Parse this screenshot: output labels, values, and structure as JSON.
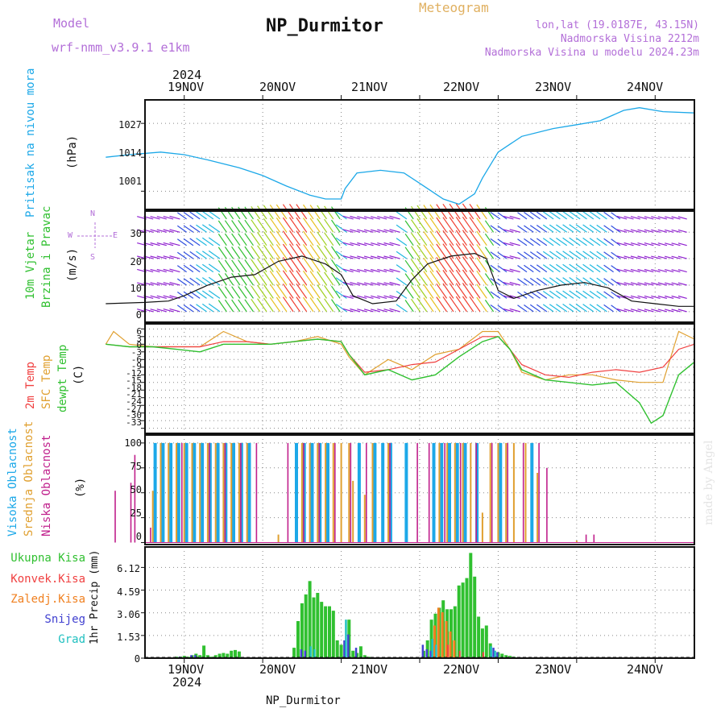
{
  "header": {
    "title": "NP_Durmitor",
    "meteogram_label": "Meteogram",
    "model_label": "Model",
    "model_name": "wrf-nmm_v3.9.1 e1km",
    "lonlat": "lon,lat (19.0187E, 43.15N)",
    "elevation": "Nadmorska Visina 2212m",
    "model_elevation": "Nadmorska Visina u modelu 2024.23m"
  },
  "footer": {
    "station": "NP_Durmitor",
    "credit": "made by Angel"
  },
  "dates": {
    "year": "2024",
    "labels": [
      "19NOV",
      "20NOV",
      "21NOV",
      "22NOV",
      "23NOV",
      "24NOV"
    ]
  },
  "colors": {
    "pressure": "#1ca8e8",
    "temp2m": "#f04040",
    "sfc": "#e0a030",
    "dewpt": "#30c030",
    "high_cloud": "#1ca8e8",
    "mid_cloud": "#e0a030",
    "low_cloud": "#c0208c",
    "total_precip": "#30c030",
    "conv": "#f04040",
    "frozen": "#f08020",
    "snow": "#4040d0",
    "graupel": "#20c0c0",
    "wind_axis": "#b36fd8"
  },
  "chart_data": [
    {
      "type": "line",
      "name_label": "Pritisak na nivou mora",
      "ylabel": "(hPa)",
      "yticks": [
        "1027",
        "1014",
        "1001"
      ],
      "ytick_values": [
        1027,
        1014,
        1001
      ],
      "ylim": [
        994,
        1036
      ],
      "grid": true,
      "series": [
        {
          "x": [
            0,
            0.3,
            0.7,
            1.0,
            1.3,
            1.7,
            2.0,
            2.3,
            2.6,
            2.8,
            3.0,
            3.05,
            3.2,
            3.5,
            3.8,
            4.0,
            4.2,
            4.3,
            4.5,
            4.7,
            4.8,
            5.0,
            5.3,
            5.7,
            6.0,
            6.3,
            6.6,
            6.8,
            7.1,
            7.5
          ],
          "y": [
            1014,
            1015,
            1016,
            1015,
            1013,
            1010,
            1007,
            1003,
            999.5,
            998,
            998,
            1002,
            1008,
            1009,
            1008,
            1004,
            1000,
            998,
            996,
            1000,
            1006,
            1016,
            1022,
            1025,
            1026.5,
            1028,
            1032,
            1033,
            1031.5,
            1031
          ]
        }
      ]
    },
    {
      "type": "line",
      "name_label_1": "10m Vjetar",
      "name_label_2": "Brzina i Pravac",
      "ylabel": "(m/s)",
      "compass": {
        "n": "N",
        "w": "W",
        "e": "E",
        "s": "S"
      },
      "yticks": [
        "30",
        "20",
        "10",
        "0"
      ],
      "ytick_values": [
        30,
        20,
        10,
        0
      ],
      "ylim": [
        -4,
        38
      ],
      "grid": true,
      "series": [
        {
          "x": [
            0,
            0.5,
            0.8,
            1.0,
            1.3,
            1.6,
            1.9,
            2.2,
            2.5,
            2.8,
            3.0,
            3.15,
            3.4,
            3.7,
            3.9,
            4.1,
            4.4,
            4.7,
            4.85,
            5.0,
            5.2,
            5.5,
            5.8,
            6.1,
            6.4,
            6.7,
            7.0,
            7.3,
            7.5
          ],
          "y": [
            3,
            3.5,
            4,
            6,
            10,
            13,
            14,
            19,
            21,
            18,
            14,
            6,
            3,
            4,
            12,
            18,
            21,
            22,
            20,
            8,
            5,
            8,
            10,
            11,
            9,
            4,
            3,
            2,
            2
          ]
        }
      ]
    },
    {
      "type": "line",
      "name_label_1": "2m Temp",
      "name_label_2": "SFC Temp",
      "name_label_3": "dewpt Temp",
      "ylabel": "(C)",
      "yticks": [
        "6",
        "3",
        "0",
        "-3",
        "-6",
        "-9",
        "-12",
        "-15",
        "-18",
        "-21",
        "-24",
        "-27",
        "-30",
        "-33"
      ],
      "ytick_values": [
        6,
        3,
        0,
        -3,
        -6,
        -9,
        -12,
        -15,
        -18,
        -21,
        -24,
        -27,
        -30,
        -33
      ],
      "ylim": [
        -35,
        8
      ],
      "grid": true,
      "series": [
        {
          "x": [
            0,
            0.3,
            0.6,
            0.9,
            1.2,
            1.5,
            1.8,
            2.1,
            2.4,
            2.7,
            3.0,
            3.1,
            3.3,
            3.6,
            3.9,
            4.2,
            4.5,
            4.8,
            5.0,
            5.15,
            5.3,
            5.6,
            5.9,
            6.2,
            6.5,
            6.8,
            7.1,
            7.3,
            7.5
          ],
          "y": [
            0,
            -1,
            -1,
            -1,
            -1,
            1,
            1,
            0,
            1,
            2,
            1,
            -4,
            -11,
            -10,
            -8,
            -7,
            -2,
            3,
            3,
            -2,
            -8,
            -12,
            -13,
            -11,
            -10,
            -11,
            -9,
            -2,
            0
          ]
        },
        {
          "x": [
            0,
            0.1,
            0.3,
            0.6,
            0.9,
            1.2,
            1.5,
            1.8,
            2.1,
            2.4,
            2.7,
            3.0,
            3.1,
            3.3,
            3.6,
            3.9,
            4.2,
            4.5,
            4.8,
            5.0,
            5.15,
            5.3,
            5.6,
            5.9,
            6.2,
            6.5,
            6.8,
            7.1,
            7.3,
            7.5
          ],
          "y": [
            0,
            5,
            0,
            -1,
            -1,
            -1,
            5,
            1,
            0,
            1,
            3,
            0,
            -5,
            -12,
            -6,
            -10,
            -4,
            -2,
            5,
            5,
            -2,
            -11,
            -14,
            -12,
            -12,
            -14,
            -15,
            -15,
            5,
            2
          ]
        },
        {
          "x": [
            0,
            0.3,
            0.6,
            0.9,
            1.2,
            1.5,
            1.8,
            2.1,
            2.4,
            2.7,
            3.0,
            3.1,
            3.3,
            3.6,
            3.9,
            4.2,
            4.5,
            4.8,
            5.0,
            5.15,
            5.3,
            5.6,
            5.9,
            6.2,
            6.5,
            6.8,
            6.95,
            7.1,
            7.3,
            7.5
          ],
          "y": [
            0,
            -1,
            -1,
            -2,
            -3,
            0,
            0,
            0,
            1,
            2,
            1,
            -4,
            -12,
            -10,
            -14,
            -12,
            -5,
            1,
            3,
            -2,
            -10,
            -14,
            -15,
            -16,
            -15,
            -23,
            -31,
            -28,
            -12,
            -7
          ]
        }
      ]
    },
    {
      "type": "bar",
      "name_label_1": "Visoka Oblacnost",
      "name_label_2": "Srednja Oblacnost",
      "name_label_3": "Niska Oblacnost",
      "ylabel": "(%)",
      "yticks": [
        "100",
        "75",
        "50",
        "25",
        "0"
      ],
      "ytick_values": [
        100,
        75,
        50,
        25,
        0
      ],
      "ylim": [
        -2,
        108
      ],
      "grid": true,
      "series": [
        {
          "name": "Visoka Oblacnost",
          "x": [
            0.65,
            0.75,
            0.85,
            0.95,
            1.05,
            1.15,
            1.25,
            1.35,
            1.45,
            1.55,
            1.65,
            1.75,
            1.85,
            2.45,
            2.55,
            2.65,
            2.75,
            2.85,
            3.25,
            3.45,
            3.55,
            3.65,
            3.85,
            4.2,
            4.3,
            4.4,
            4.5,
            4.6,
            4.75,
            5.05,
            5.45
          ],
          "values": [
            100,
            100,
            100,
            100,
            100,
            100,
            100,
            100,
            100,
            100,
            100,
            100,
            100,
            100,
            100,
            100,
            100,
            100,
            100,
            100,
            100,
            100,
            100,
            100,
            100,
            100,
            100,
            100,
            100,
            100,
            100
          ]
        },
        {
          "name": "Srednja Oblacnost",
          "x": [
            0.6,
            0.7,
            0.8,
            0.9,
            1.0,
            1.1,
            1.2,
            1.3,
            1.4,
            1.5,
            1.6,
            1.7,
            1.8,
            2.2,
            2.5,
            2.6,
            2.7,
            2.8,
            2.9,
            3.0,
            3.1,
            3.15,
            3.3,
            3.4,
            3.6,
            4.25,
            4.35,
            4.45,
            4.55,
            4.65,
            4.8,
            4.9,
            5.0,
            5.1,
            5.2,
            5.35,
            5.5,
            6.0
          ],
          "values": [
            52,
            100,
            100,
            100,
            100,
            100,
            100,
            100,
            100,
            100,
            100,
            100,
            100,
            8,
            100,
            100,
            100,
            100,
            100,
            100,
            100,
            62,
            48,
            100,
            100,
            100,
            100,
            100,
            100,
            100,
            30,
            100,
            100,
            100,
            100,
            100,
            70,
            2
          ]
        },
        {
          "name": "Niska Oblacnost",
          "x": [
            0.1,
            0.3,
            0.35,
            0.55,
            0.95,
            1.3,
            1.5,
            1.7,
            1.9,
            2.3,
            2.5,
            2.7,
            2.9,
            3.1,
            3.3,
            3.6,
            3.95,
            4.1,
            4.3,
            4.5,
            4.7,
            4.9,
            5.1,
            5.3,
            5.5,
            5.6,
            6.1,
            6.2
          ],
          "values": [
            52,
            60,
            88,
            15,
            100,
            100,
            100,
            100,
            100,
            100,
            100,
            100,
            100,
            100,
            100,
            100,
            100,
            100,
            100,
            100,
            100,
            100,
            100,
            100,
            100,
            75,
            8,
            8
          ]
        }
      ]
    },
    {
      "type": "bar",
      "legend_total": "Ukupna Kisa",
      "legend_conv": "Konvek.Kisa",
      "legend_frozen": "Zaledj.Kisa",
      "legend_snow": "Snijeg",
      "legend_graupel": "Grad",
      "ylabel": "1hr Precip (mm)",
      "yticks": [
        "6.12",
        "4.59",
        "3.06",
        "1.53",
        "0"
      ],
      "ytick_values": [
        6.12,
        4.59,
        3.06,
        1.53,
        0
      ],
      "ylim": [
        0,
        7.5
      ],
      "grid": true,
      "series": [
        {
          "name": "Ukupna Kisa",
          "x": [
            0.9,
            0.95,
            1.0,
            1.05,
            1.1,
            1.15,
            1.2,
            1.25,
            1.3,
            1.35,
            1.4,
            1.45,
            1.5,
            1.55,
            1.6,
            1.65,
            1.7,
            2.4,
            2.45,
            2.5,
            2.55,
            2.6,
            2.65,
            2.7,
            2.75,
            2.8,
            2.85,
            2.9,
            2.95,
            3.0,
            3.05,
            3.1,
            3.15,
            3.2,
            3.25,
            3.3,
            3.35,
            4.05,
            4.1,
            4.15,
            4.2,
            4.25,
            4.3,
            4.35,
            4.4,
            4.45,
            4.5,
            4.55,
            4.6,
            4.65,
            4.7,
            4.75,
            4.8,
            4.85,
            4.9,
            4.95,
            5.0,
            5.05,
            5.1,
            5.15,
            5.2,
            5.25
          ],
          "values": [
            0.1,
            0.1,
            0.15,
            0.1,
            0.2,
            0.3,
            0.2,
            0.85,
            0.2,
            0.1,
            0.2,
            0.3,
            0.35,
            0.3,
            0.5,
            0.55,
            0.45,
            0.7,
            2.5,
            3.7,
            4.3,
            5.2,
            4.1,
            4.4,
            3.8,
            3.5,
            3.5,
            3.2,
            1.2,
            0.9,
            0.6,
            2.6,
            0.5,
            0.35,
            0.8,
            0.2,
            0.1,
            0.5,
            1.2,
            2.6,
            3.0,
            3.4,
            3.9,
            3.3,
            3.3,
            3.5,
            4.9,
            5.1,
            5.4,
            7.1,
            5.5,
            2.8,
            2.0,
            2.2,
            1.0,
            0.5,
            0.4,
            0.3,
            0.2,
            0.15,
            0.1,
            0.05
          ]
        },
        {
          "name": "Konvek.Kisa",
          "x": [
            4.35,
            4.5,
            4.8
          ],
          "values": [
            0.9,
            0.5,
            0.4
          ]
        },
        {
          "name": "Zaledj.Kisa",
          "x": [
            4.2,
            4.25,
            4.3,
            4.35,
            4.4,
            4.45
          ],
          "values": [
            2.2,
            3.4,
            3.1,
            2.5,
            1.8,
            1.2
          ]
        },
        {
          "name": "Snijeg",
          "x": [
            0.95,
            1.1,
            1.15,
            2.5,
            2.55,
            3.05,
            3.1,
            3.2,
            4.05,
            4.1,
            4.15,
            4.95,
            5.0
          ],
          "values": [
            0.1,
            0.2,
            0.2,
            0.6,
            0.5,
            1.2,
            1.6,
            0.7,
            0.9,
            0.6,
            0.5,
            0.7,
            0.4
          ]
        },
        {
          "name": "Grad",
          "x": [
            2.6,
            2.65,
            3.05,
            4.15,
            4.2,
            4.9,
            4.95
          ],
          "values": [
            0.8,
            0.6,
            2.6,
            1.3,
            0.9,
            0.8,
            0.5
          ]
        }
      ]
    }
  ]
}
